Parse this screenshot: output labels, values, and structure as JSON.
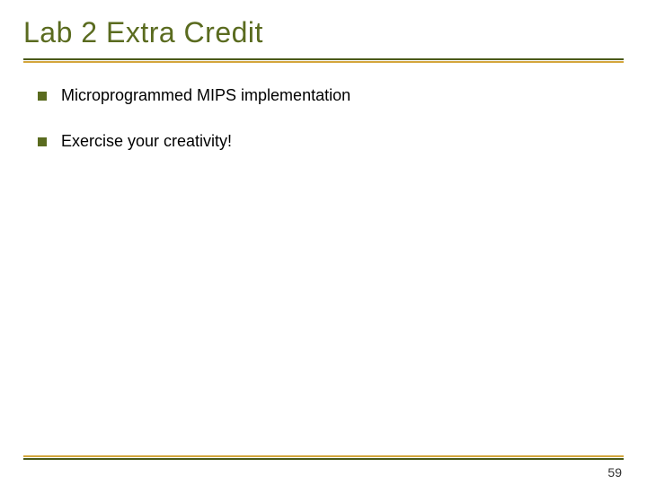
{
  "slide": {
    "title": "Lab 2 Extra Credit",
    "title_color": "#5a6b1f",
    "title_fontsize": 32,
    "underline": {
      "line1_color": "#4a5a1a",
      "line2_color": "#d4a63c",
      "line_height": 2
    },
    "bullets": [
      {
        "text": "Microprogrammed MIPS implementation"
      },
      {
        "text": "Exercise your creativity!"
      }
    ],
    "bullet_icon": {
      "shape": "square",
      "color": "#5a6b1f",
      "size": 10
    },
    "bullet_text": {
      "fontsize": 18,
      "color": "#000000"
    },
    "footer_line": {
      "line1_color": "#d4a63c",
      "line2_color": "#4a5a1a",
      "line_height": 2
    },
    "page_number": "59",
    "page_number_fontsize": 14,
    "background_color": "#ffffff"
  }
}
